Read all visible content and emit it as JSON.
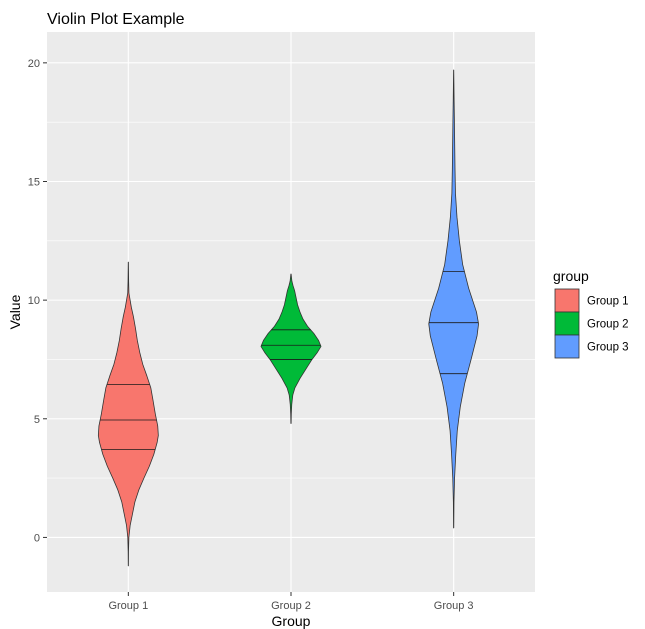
{
  "chart_data": {
    "type": "violin",
    "title": "Violin Plot Example",
    "xlabel": "Group",
    "ylabel": "Value",
    "ylim": [
      -2.3,
      21.3
    ],
    "yticks": [
      0,
      5,
      10,
      15,
      20
    ],
    "categories": [
      "Group 1",
      "Group 2",
      "Group 3"
    ],
    "grid": true,
    "legend": {
      "title": "group",
      "position": "right",
      "entries": [
        "Group 1",
        "Group 2",
        "Group 3"
      ]
    },
    "colors": {
      "Group 1": "#F8766D",
      "Group 2": "#00BA38",
      "Group 3": "#619CFF"
    },
    "series": [
      {
        "name": "Group 1",
        "min": -1.2,
        "max": 11.6,
        "quantiles": [
          3.7,
          4.95,
          6.45
        ],
        "density": [
          [
            -1.2,
            0.003
          ],
          [
            -0.6,
            0.006
          ],
          [
            0.0,
            0.018
          ],
          [
            0.5,
            0.06
          ],
          [
            1.0,
            0.14
          ],
          [
            1.5,
            0.22
          ],
          [
            2.0,
            0.35
          ],
          [
            2.5,
            0.52
          ],
          [
            3.0,
            0.7
          ],
          [
            3.5,
            0.85
          ],
          [
            4.0,
            0.96
          ],
          [
            4.3,
            1.0
          ],
          [
            4.7,
            0.98
          ],
          [
            5.2,
            0.9
          ],
          [
            5.8,
            0.82
          ],
          [
            6.3,
            0.75
          ],
          [
            6.8,
            0.62
          ],
          [
            7.3,
            0.48
          ],
          [
            7.8,
            0.38
          ],
          [
            8.3,
            0.3
          ],
          [
            8.8,
            0.24
          ],
          [
            9.3,
            0.17
          ],
          [
            9.7,
            0.1
          ],
          [
            10.0,
            0.06
          ],
          [
            10.3,
            0.02
          ],
          [
            10.8,
            0.01
          ],
          [
            11.6,
            0.003
          ]
        ]
      },
      {
        "name": "Group 2",
        "min": 4.8,
        "max": 11.1,
        "quantiles": [
          7.5,
          8.1,
          8.75
        ],
        "density": [
          [
            4.8,
            0.004
          ],
          [
            5.2,
            0.01
          ],
          [
            5.6,
            0.025
          ],
          [
            6.0,
            0.06
          ],
          [
            6.3,
            0.13
          ],
          [
            6.7,
            0.3
          ],
          [
            7.1,
            0.5
          ],
          [
            7.5,
            0.7
          ],
          [
            7.8,
            0.88
          ],
          [
            8.05,
            1.0
          ],
          [
            8.3,
            0.92
          ],
          [
            8.6,
            0.76
          ],
          [
            8.9,
            0.55
          ],
          [
            9.2,
            0.4
          ],
          [
            9.5,
            0.3
          ],
          [
            9.8,
            0.22
          ],
          [
            10.1,
            0.17
          ],
          [
            10.4,
            0.12
          ],
          [
            10.6,
            0.07
          ],
          [
            10.8,
            0.03
          ],
          [
            11.1,
            0.004
          ]
        ]
      },
      {
        "name": "Group 3",
        "min": 0.4,
        "max": 19.7,
        "quantiles": [
          6.9,
          9.05,
          11.2
        ],
        "density": [
          [
            0.4,
            0.004
          ],
          [
            1.5,
            0.01
          ],
          [
            2.5,
            0.03
          ],
          [
            3.5,
            0.07
          ],
          [
            4.5,
            0.12
          ],
          [
            5.5,
            0.22
          ],
          [
            6.5,
            0.37
          ],
          [
            7.5,
            0.58
          ],
          [
            8.5,
            0.78
          ],
          [
            9.0,
            0.83
          ],
          [
            9.5,
            0.76
          ],
          [
            10.5,
            0.5
          ],
          [
            11.5,
            0.3
          ],
          [
            12.5,
            0.19
          ],
          [
            13.5,
            0.11
          ],
          [
            14.5,
            0.06
          ],
          [
            15.5,
            0.045
          ],
          [
            16.5,
            0.035
          ],
          [
            17.5,
            0.025
          ],
          [
            18.5,
            0.014
          ],
          [
            19.7,
            0.003
          ]
        ]
      }
    ]
  }
}
